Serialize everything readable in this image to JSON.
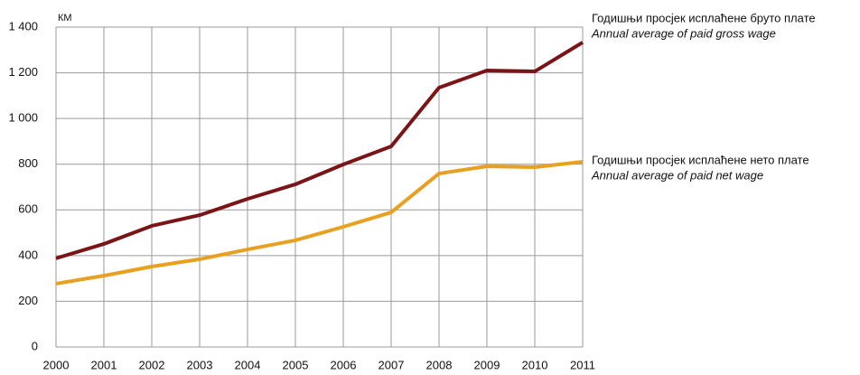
{
  "chart_data": {
    "type": "line",
    "unit": "КМ",
    "x": [
      "2000",
      "2001",
      "2002",
      "2003",
      "2004",
      "2005",
      "2006",
      "2007",
      "2008",
      "2009",
      "2010",
      "2011"
    ],
    "series": [
      {
        "name": "Годишњи просјек  исплаћене бруто плате",
        "translation": "Annual average of paid gross wage",
        "color": "#7b1416",
        "values": [
          388,
          451,
          530,
          577,
          648,
          712,
          799,
          878,
          1135,
          1210,
          1206,
          1333
        ]
      },
      {
        "name": "Годишњи просјек исплаћене нето плате",
        "translation": "Annual average of paid net wage",
        "color": "#e8a020",
        "values": [
          277,
          312,
          352,
          384,
          427,
          467,
          526,
          589,
          759,
          791,
          787,
          811
        ]
      }
    ],
    "ylim": [
      0,
      1400
    ],
    "yticks": [
      0,
      200,
      400,
      600,
      800,
      {
        "value": 1000,
        "label": "1 000"
      },
      {
        "value": 1200,
        "label": "1 200"
      },
      {
        "value": 1400,
        "label": "1 400"
      }
    ],
    "grid": true
  }
}
